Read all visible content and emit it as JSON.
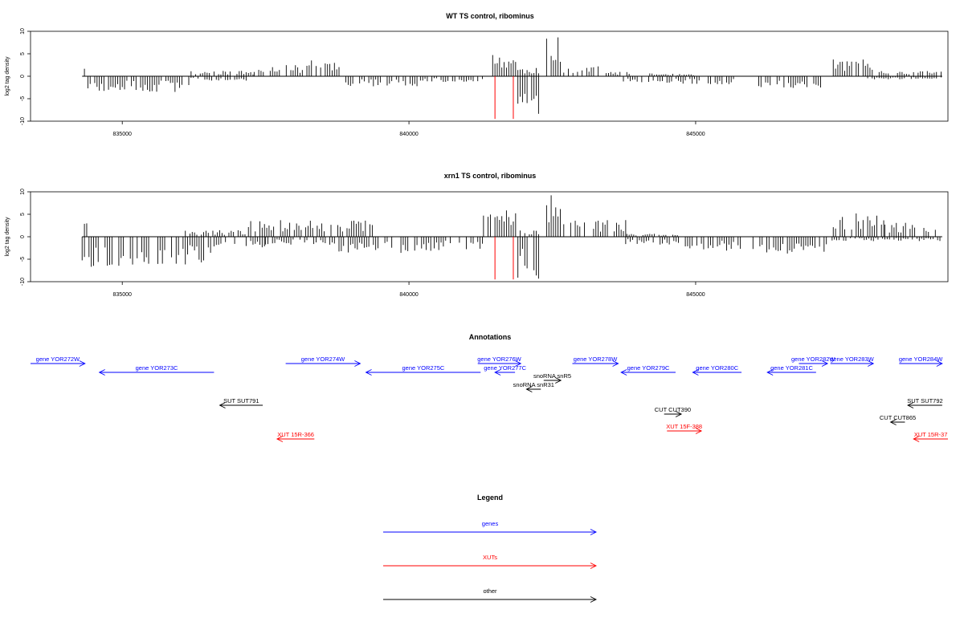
{
  "chart_data": [
    {
      "type": "bar",
      "title": "WT TS control, ribominus",
      "xlabel": "",
      "ylabel": "log2 tag density",
      "xlim": [
        833400,
        849400
      ],
      "ylim": [
        -10,
        10
      ],
      "xticks": [
        835000,
        840000,
        845000
      ],
      "yticks": [
        -10,
        -5,
        0,
        5,
        10
      ],
      "baseline": [
        834300,
        849300
      ],
      "marker_color": "#ff0000",
      "markers": [
        841500,
        841820
      ],
      "bar_step": 40,
      "bar_color": "#000000",
      "plus_strand": [
        {
          "x_start": 834300,
          "x_end": 834400,
          "value": 2.5
        },
        {
          "x_start": 836200,
          "x_end": 837300,
          "value": 1.0
        },
        {
          "x_start": 837300,
          "x_end": 838300,
          "value": 2.0
        },
        {
          "x_start": 838300,
          "x_end": 838800,
          "value": 3.0
        },
        {
          "x_start": 841300,
          "x_end": 841900,
          "value": 4.0
        },
        {
          "x_start": 841900,
          "x_end": 842300,
          "value": 1.5
        },
        {
          "x_start": 842400,
          "x_end": 842650,
          "value": 7.5
        },
        {
          "x_start": 842700,
          "x_end": 843400,
          "value": 2.0
        },
        {
          "x_start": 843400,
          "x_end": 843900,
          "value": 0.8
        },
        {
          "x_start": 844200,
          "x_end": 845000,
          "value": 0.5
        },
        {
          "x_start": 847400,
          "x_end": 848200,
          "value": 3.0
        },
        {
          "x_start": 848200,
          "x_end": 849300,
          "value": 1.0
        }
      ],
      "minus_strand": [
        {
          "x_start": 834400,
          "x_end": 836200,
          "value": -2.8
        },
        {
          "x_start": 836200,
          "x_end": 837200,
          "value": -0.8
        },
        {
          "x_start": 838900,
          "x_end": 840200,
          "value": -1.8
        },
        {
          "x_start": 840200,
          "x_end": 841300,
          "value": -1.0
        },
        {
          "x_start": 841900,
          "x_end": 842300,
          "value": -7.5
        },
        {
          "x_start": 843700,
          "x_end": 844700,
          "value": -1.2
        },
        {
          "x_start": 844700,
          "x_end": 845700,
          "value": -1.5
        },
        {
          "x_start": 846100,
          "x_end": 847200,
          "value": -2.2
        },
        {
          "x_start": 848000,
          "x_end": 849300,
          "value": -0.6
        }
      ]
    },
    {
      "type": "bar",
      "title": "xrn1 TS control, ribominus",
      "xlabel": "",
      "ylabel": "log2 tag density",
      "xlim": [
        833400,
        849400
      ],
      "ylim": [
        -10,
        10
      ],
      "xticks": [
        835000,
        840000,
        845000
      ],
      "yticks": [
        -10,
        -5,
        0,
        5,
        10
      ],
      "baseline": [
        834300,
        849300
      ],
      "marker_color": "#ff0000",
      "markers": [
        841500,
        841820
      ],
      "bar_step": 40,
      "bar_color": "#000000",
      "plus_strand": [
        {
          "x_start": 834300,
          "x_end": 834400,
          "value": 3.0
        },
        {
          "x_start": 836100,
          "x_end": 837200,
          "value": 1.2
        },
        {
          "x_start": 837200,
          "x_end": 839400,
          "value": 3.0
        },
        {
          "x_start": 841300,
          "x_end": 841900,
          "value": 5.0
        },
        {
          "x_start": 841900,
          "x_end": 842300,
          "value": 1.5
        },
        {
          "x_start": 842400,
          "x_end": 842650,
          "value": 7.5
        },
        {
          "x_start": 842700,
          "x_end": 843800,
          "value": 3.0
        },
        {
          "x_start": 843800,
          "x_end": 844700,
          "value": 0.6
        },
        {
          "x_start": 847400,
          "x_end": 848300,
          "value": 4.5
        },
        {
          "x_start": 848300,
          "x_end": 849300,
          "value": 2.5
        }
      ],
      "minus_strand": [
        {
          "x_start": 834300,
          "x_end": 835500,
          "value": -5.5
        },
        {
          "x_start": 835500,
          "x_end": 836600,
          "value": -5.0
        },
        {
          "x_start": 836600,
          "x_end": 837500,
          "value": -2.0
        },
        {
          "x_start": 837500,
          "x_end": 838700,
          "value": -1.5
        },
        {
          "x_start": 838700,
          "x_end": 840400,
          "value": -3.0
        },
        {
          "x_start": 840400,
          "x_end": 841300,
          "value": -2.5
        },
        {
          "x_start": 841900,
          "x_end": 842300,
          "value": -7.5
        },
        {
          "x_start": 843700,
          "x_end": 844700,
          "value": -1.5
        },
        {
          "x_start": 844700,
          "x_end": 845800,
          "value": -2.5
        },
        {
          "x_start": 846000,
          "x_end": 847300,
          "value": -3.0
        },
        {
          "x_start": 847300,
          "x_end": 849300,
          "value": -0.8
        }
      ]
    }
  ],
  "annotations": {
    "title": "Annotations",
    "colors": {
      "gene": "#0000ff",
      "xut": "#ff0000",
      "other": "#000000"
    },
    "features": [
      {
        "label": "gene YOR272W",
        "kind": "gene",
        "strand": "+",
        "row": 0,
        "start": 833400,
        "end": 834350
      },
      {
        "label": "gene YOR273C",
        "kind": "gene",
        "strand": "-",
        "row": 1,
        "start": 834600,
        "end": 836600
      },
      {
        "label": "gene YOR274W",
        "kind": "gene",
        "strand": "+",
        "row": 0,
        "start": 837850,
        "end": 839150
      },
      {
        "label": "gene YOR275C",
        "kind": "gene",
        "strand": "-",
        "row": 1,
        "start": 839250,
        "end": 841250
      },
      {
        "label": "gene YOR276W",
        "kind": "gene",
        "strand": "+",
        "row": 0,
        "start": 841200,
        "end": 841950
      },
      {
        "label": "gene YOR277C",
        "kind": "gene",
        "strand": "-",
        "row": 1,
        "start": 841500,
        "end": 841850
      },
      {
        "label": "snoRNA snR5",
        "kind": "other",
        "strand": "+",
        "row": 2,
        "start": 842350,
        "end": 842650
      },
      {
        "label": "snoRNA snR31",
        "kind": "other",
        "strand": "-",
        "row": 3,
        "start": 842050,
        "end": 842300
      },
      {
        "label": "gene YOR278W",
        "kind": "gene",
        "strand": "+",
        "row": 0,
        "start": 842850,
        "end": 843650
      },
      {
        "label": "gene YOR279C",
        "kind": "gene",
        "strand": "-",
        "row": 1,
        "start": 843700,
        "end": 844650
      },
      {
        "label": "gene YOR280C",
        "kind": "gene",
        "strand": "-",
        "row": 1,
        "start": 844950,
        "end": 845800
      },
      {
        "label": "gene YOR281C",
        "kind": "gene",
        "strand": "-",
        "row": 1,
        "start": 846250,
        "end": 847100
      },
      {
        "label": "gene YOR282W",
        "kind": "gene",
        "strand": "+",
        "row": 0,
        "start": 846800,
        "end": 847300
      },
      {
        "label": "gene YOR283W",
        "kind": "gene",
        "strand": "+",
        "row": 0,
        "start": 847350,
        "end": 848100
      },
      {
        "label": "gene YOR284W",
        "kind": "gene",
        "strand": "+",
        "row": 0,
        "start": 848550,
        "end": 849300
      },
      {
        "label": "SUT SUT791",
        "kind": "other",
        "strand": "-",
        "row": 4,
        "start": 836700,
        "end": 837450
      },
      {
        "label": "SUT SUT792",
        "kind": "other",
        "strand": "-",
        "row": 4,
        "start": 848700,
        "end": 849300
      },
      {
        "label": "CUT CUT390",
        "kind": "other",
        "strand": "+",
        "row": 5,
        "start": 844450,
        "end": 844750
      },
      {
        "label": "CUT CUT865",
        "kind": "other",
        "strand": "-",
        "row": 6,
        "start": 848400,
        "end": 848650
      },
      {
        "label": "XUT 15F-388",
        "kind": "xut",
        "strand": "+",
        "row": 7,
        "start": 844500,
        "end": 845100
      },
      {
        "label": "XUT 15R-366",
        "kind": "xut",
        "strand": "-",
        "row": 8,
        "start": 837700,
        "end": 838350
      },
      {
        "label": "XUT 15R-37",
        "kind": "xut",
        "strand": "-",
        "row": 8,
        "start": 848800,
        "end": 849400
      }
    ]
  },
  "legend": {
    "title": "Legend",
    "entries": [
      {
        "label": "genes",
        "color": "#0000ff"
      },
      {
        "label": "XUTs",
        "color": "#ff0000"
      },
      {
        "label": "other",
        "color": "#000000"
      }
    ]
  }
}
